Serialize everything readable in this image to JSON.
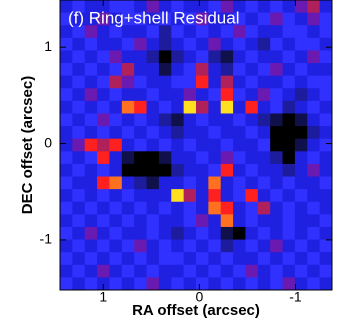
{
  "chart_data": {
    "type": "heatmap",
    "title": "(f) Ring+shell Residual",
    "x_label": "RA offset (arcsec)",
    "y_label": "DEC offset (arcsec)",
    "xlim": [
      1.45,
      -1.38
    ],
    "ylim": [
      -1.52,
      1.49
    ],
    "xticks": [
      1,
      0,
      -1
    ],
    "yticks": [
      -1,
      0,
      1
    ],
    "colors": [
      "#000000",
      "#10104a",
      "#1c1c9c",
      "#2020e0",
      "#3030ff",
      "#6a1ab0",
      "#b0205a",
      "#ff2020",
      "#ff7020",
      "#ffe020"
    ],
    "z": [
      [
        3,
        4,
        3,
        3,
        4,
        4,
        3,
        5,
        3,
        4,
        3,
        3,
        4,
        5,
        3,
        4,
        3,
        4,
        3,
        5,
        6,
        3
      ],
      [
        4,
        3,
        3,
        5,
        3,
        4,
        4,
        3,
        4,
        3,
        4,
        5,
        3,
        3,
        4,
        3,
        4,
        5,
        4,
        3,
        5,
        4
      ],
      [
        3,
        4,
        5,
        3,
        4,
        3,
        3,
        4,
        2,
        4,
        3,
        4,
        3,
        4,
        5,
        4,
        3,
        3,
        4,
        4,
        3,
        4
      ],
      [
        4,
        3,
        4,
        3,
        3,
        4,
        5,
        3,
        2,
        3,
        4,
        3,
        5,
        3,
        4,
        3,
        2,
        4,
        3,
        4,
        4,
        3
      ],
      [
        3,
        4,
        3,
        4,
        5,
        3,
        3,
        2,
        0,
        2,
        3,
        4,
        2,
        1,
        3,
        4,
        3,
        3,
        4,
        3,
        5,
        4
      ],
      [
        4,
        3,
        4,
        3,
        4,
        6,
        3,
        3,
        1,
        3,
        4,
        6,
        3,
        2,
        4,
        3,
        4,
        5,
        3,
        4,
        3,
        3
      ],
      [
        3,
        4,
        3,
        4,
        6,
        5,
        4,
        3,
        3,
        4,
        4,
        7,
        3,
        6,
        3,
        4,
        3,
        3,
        4,
        3,
        4,
        4
      ],
      [
        4,
        3,
        5,
        3,
        4,
        3,
        3,
        4,
        3,
        3,
        5,
        3,
        4,
        7,
        4,
        3,
        5,
        4,
        3,
        2,
        3,
        4
      ],
      [
        3,
        4,
        3,
        4,
        3,
        8,
        7,
        3,
        4,
        3,
        9,
        6,
        3,
        9,
        3,
        7,
        3,
        4,
        2,
        3,
        4,
        3
      ],
      [
        4,
        3,
        4,
        5,
        4,
        3,
        4,
        3,
        2,
        1,
        3,
        4,
        3,
        3,
        4,
        3,
        2,
        1,
        0,
        1,
        3,
        4
      ],
      [
        3,
        4,
        3,
        4,
        3,
        4,
        3,
        4,
        3,
        2,
        3,
        3,
        4,
        3,
        3,
        4,
        3,
        0,
        0,
        0,
        2,
        3
      ],
      [
        3,
        5,
        7,
        6,
        7,
        3,
        4,
        3,
        4,
        3,
        4,
        3,
        3,
        4,
        3,
        3,
        4,
        0,
        0,
        1,
        3,
        4
      ],
      [
        4,
        3,
        4,
        7,
        3,
        1,
        0,
        0,
        1,
        3,
        3,
        4,
        3,
        5,
        4,
        3,
        3,
        2,
        0,
        3,
        4,
        3
      ],
      [
        3,
        4,
        3,
        4,
        3,
        0,
        0,
        0,
        0,
        2,
        3,
        3,
        4,
        7,
        3,
        4,
        3,
        3,
        2,
        3,
        5,
        3
      ],
      [
        4,
        3,
        3,
        7,
        8,
        3,
        2,
        1,
        3,
        3,
        4,
        3,
        8,
        3,
        4,
        3,
        4,
        3,
        4,
        3,
        3,
        4
      ],
      [
        3,
        4,
        3,
        4,
        3,
        4,
        3,
        3,
        3,
        9,
        6,
        3,
        7,
        3,
        4,
        7,
        3,
        4,
        3,
        4,
        3,
        3
      ],
      [
        4,
        3,
        4,
        3,
        4,
        3,
        4,
        3,
        4,
        3,
        4,
        3,
        8,
        7,
        3,
        4,
        6,
        3,
        4,
        3,
        4,
        3
      ],
      [
        3,
        4,
        3,
        4,
        3,
        4,
        3,
        4,
        3,
        3,
        4,
        5,
        3,
        8,
        3,
        4,
        3,
        3,
        4,
        3,
        3,
        4
      ],
      [
        4,
        3,
        5,
        3,
        4,
        3,
        3,
        4,
        3,
        2,
        3,
        4,
        3,
        1,
        0,
        3,
        4,
        3,
        4,
        3,
        4,
        3
      ],
      [
        3,
        4,
        3,
        4,
        3,
        4,
        5,
        3,
        4,
        3,
        4,
        3,
        4,
        2,
        3,
        4,
        3,
        5,
        3,
        4,
        3,
        4
      ],
      [
        4,
        3,
        4,
        3,
        4,
        3,
        4,
        3,
        4,
        4,
        3,
        4,
        3,
        4,
        3,
        3,
        4,
        3,
        4,
        3,
        4,
        3
      ],
      [
        3,
        4,
        3,
        5,
        3,
        4,
        3,
        4,
        3,
        3,
        4,
        3,
        4,
        3,
        4,
        5,
        3,
        4,
        3,
        4,
        3,
        4
      ],
      [
        4,
        3,
        4,
        3,
        4,
        3,
        4,
        5,
        3,
        4,
        3,
        4,
        3,
        4,
        3,
        4,
        3,
        4,
        5,
        3,
        4,
        3
      ]
    ]
  }
}
